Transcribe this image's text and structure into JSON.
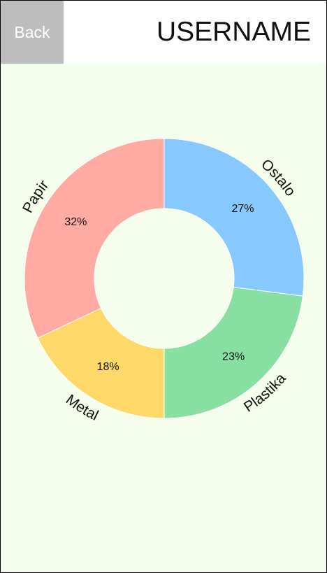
{
  "header": {
    "back_label": "Back",
    "title": "USERNAME"
  },
  "colors": {
    "background": "#f5fdec",
    "header_background": "#ffffff",
    "back_button": "#bdbdbd"
  },
  "chart_data": {
    "type": "pie",
    "variant": "donut",
    "categories": [
      "Ostalo",
      "Plastika",
      "Metal",
      "Papir"
    ],
    "values": [
      27,
      23,
      18,
      32
    ],
    "value_labels": [
      "27%",
      "23%",
      "18%",
      "32%"
    ],
    "colors": [
      "#87c8ff",
      "#87e0a1",
      "#ffd86a",
      "#ffaaa3"
    ],
    "start_angle": "top (12 o'clock), clockwise"
  }
}
